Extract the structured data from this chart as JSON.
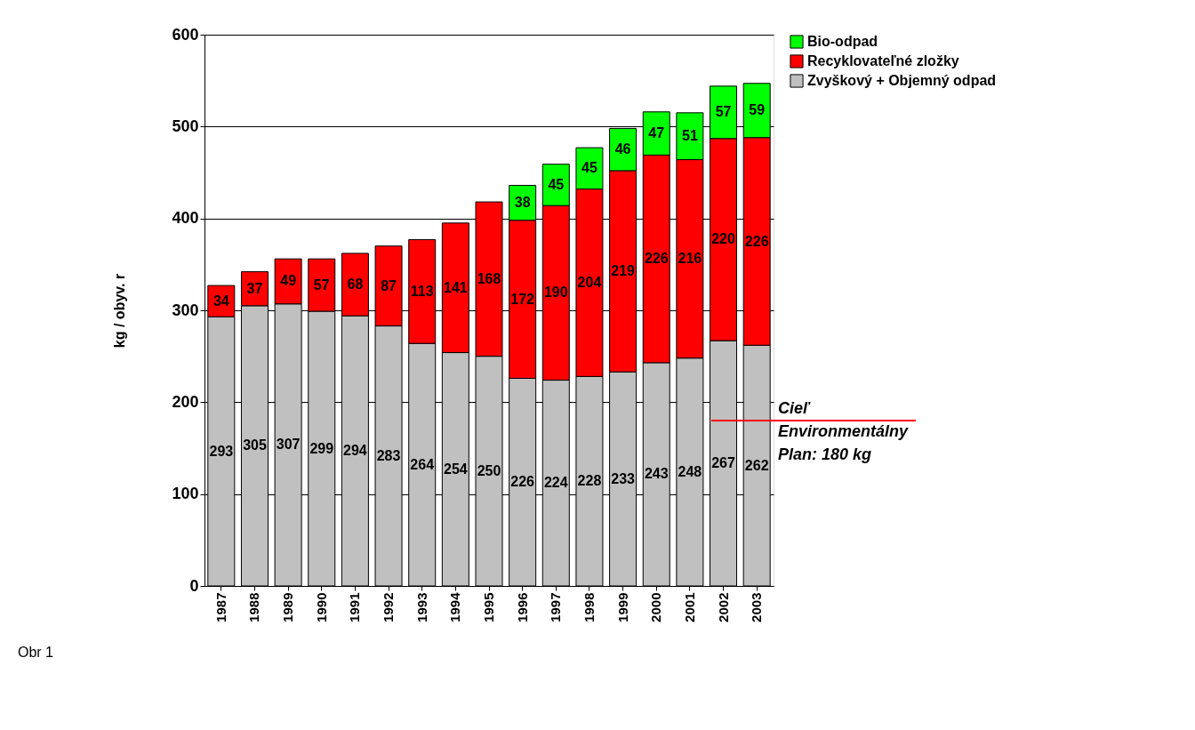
{
  "chart_data": {
    "type": "bar",
    "stacked": true,
    "ylabel": "kg / obyv. r",
    "categories": [
      "1987",
      "1988",
      "1989",
      "1990",
      "1991",
      "1992",
      "1993",
      "1994",
      "1995",
      "1996",
      "1997",
      "1998",
      "1999",
      "2000",
      "2001",
      "2002",
      "2003"
    ],
    "series": [
      {
        "name": "Zvyškový + Objemný odpad",
        "color": "#c0c0c0",
        "values": [
          293,
          305,
          307,
          299,
          294,
          283,
          264,
          254,
          250,
          226,
          224,
          228,
          233,
          243,
          248,
          267,
          262
        ]
      },
      {
        "name": "Recyklovateľné zložky",
        "color": "#ff0000",
        "values": [
          34,
          37,
          49,
          57,
          68,
          87,
          113,
          141,
          168,
          172,
          190,
          204,
          219,
          226,
          216,
          220,
          226
        ]
      },
      {
        "name": "Bio-odpad",
        "color": "#00ff00",
        "values": [
          null,
          null,
          null,
          null,
          null,
          null,
          null,
          null,
          null,
          38,
          45,
          45,
          46,
          47,
          51,
          57,
          59
        ]
      }
    ],
    "ylim": [
      0,
      600
    ],
    "yticks": [
      0,
      100,
      200,
      300,
      400,
      500,
      600
    ],
    "grid": "y",
    "legend": "right",
    "data_labels": true,
    "ref_lines": [
      {
        "axis": "y",
        "value": 180,
        "label": "Cieľ Environmentálny Plan: 180 kg",
        "color": "#ff0000"
      }
    ],
    "annotations": [
      "Obr 1"
    ]
  }
}
